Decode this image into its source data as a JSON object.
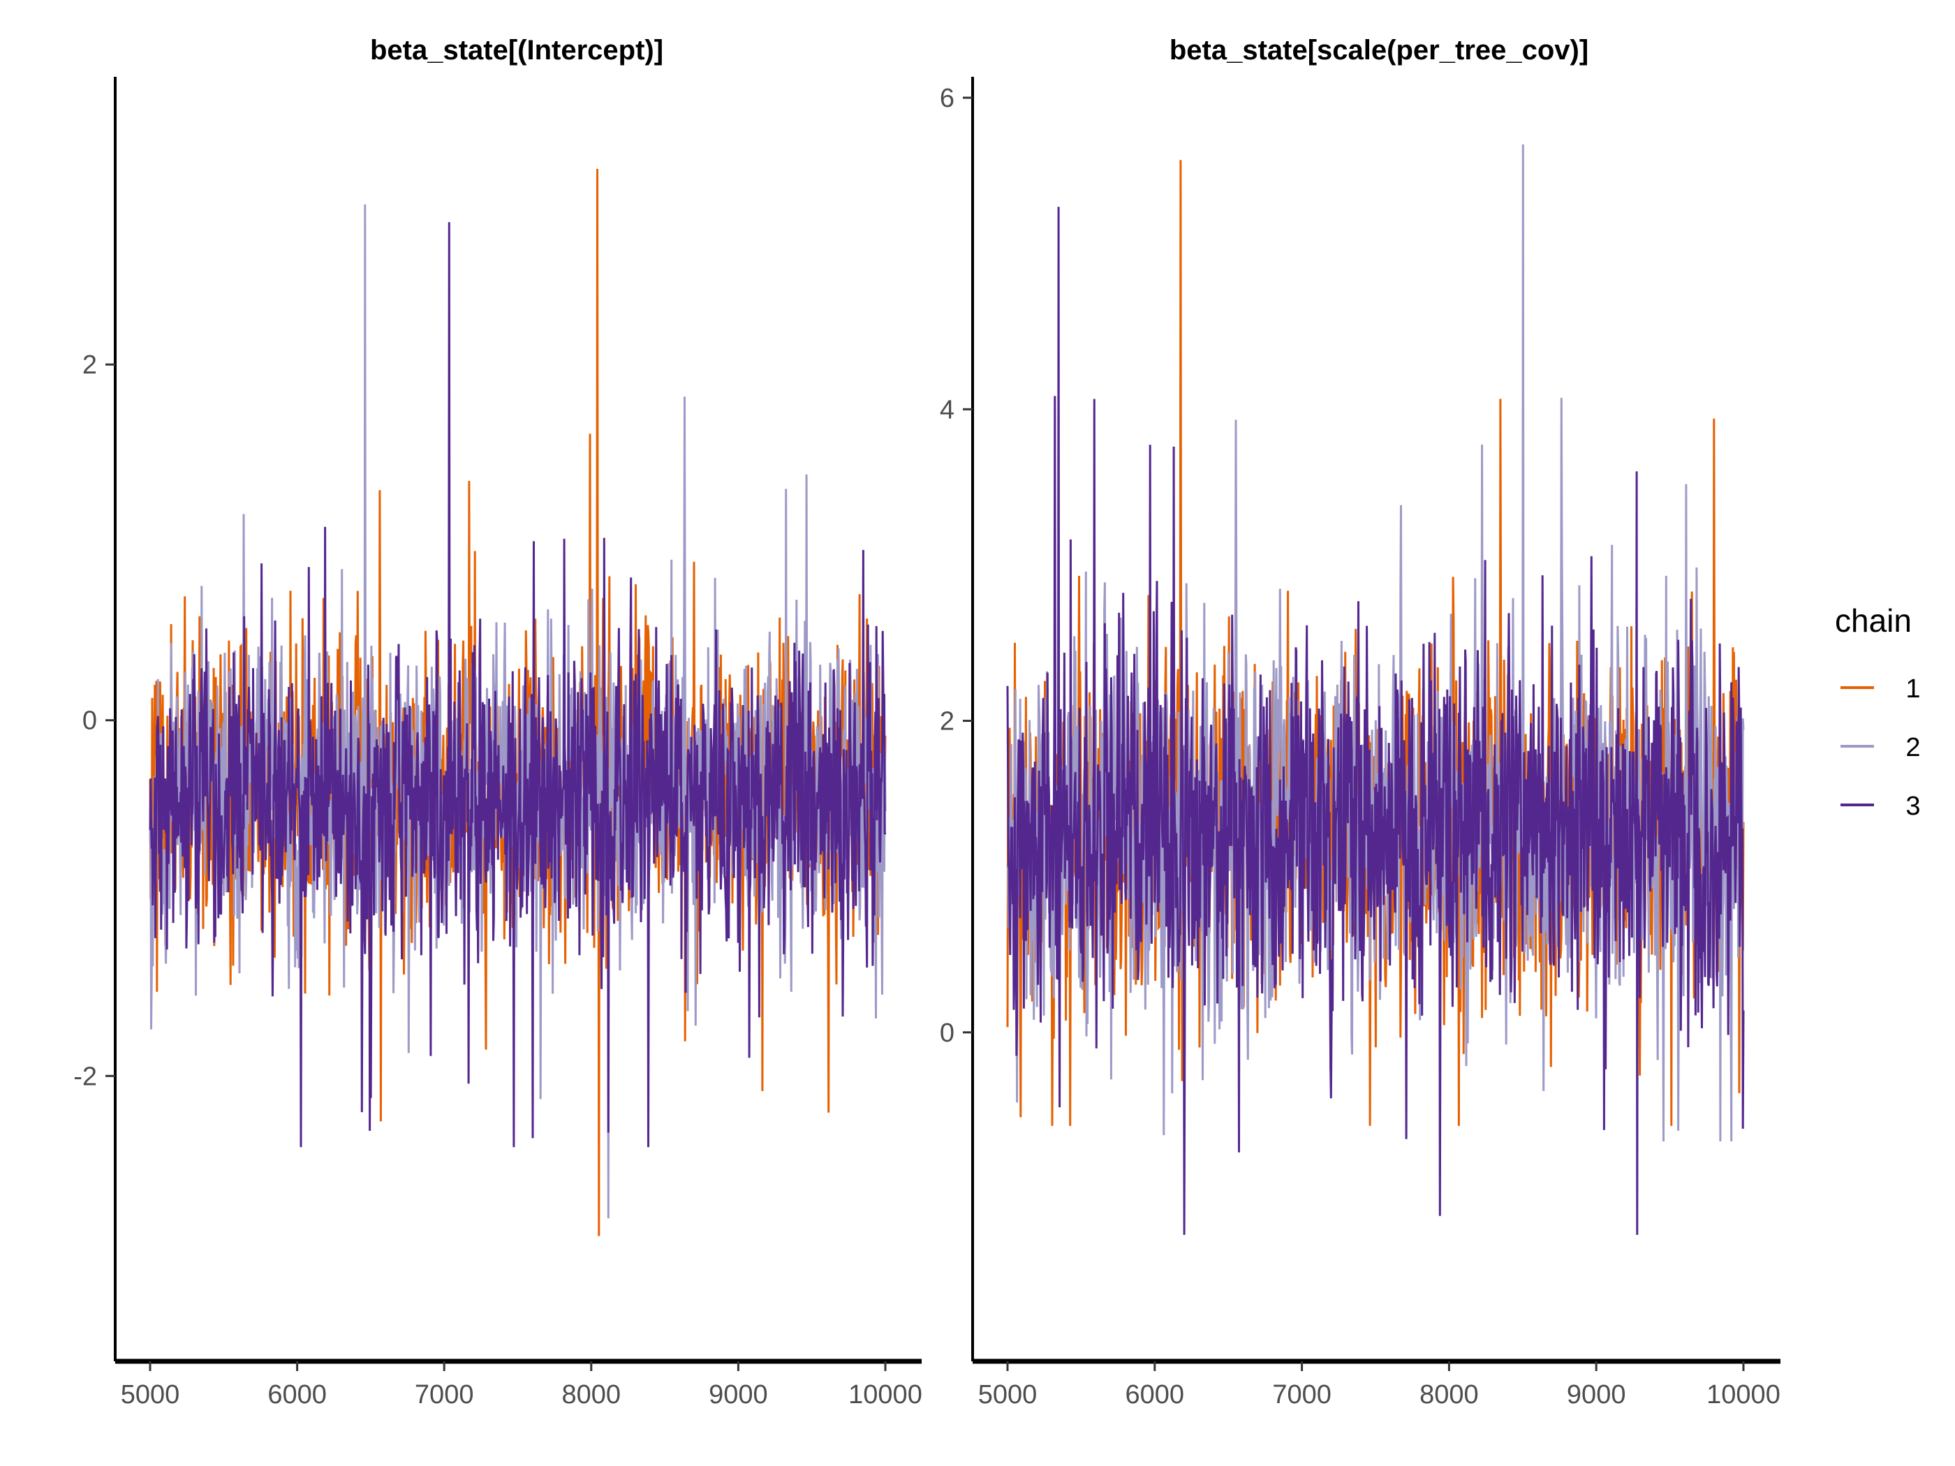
{
  "chart_data": [
    {
      "type": "line",
      "title": "beta_state[(Intercept)]",
      "xlabel": "",
      "ylabel": "",
      "xlim": [
        5000,
        10000
      ],
      "ylim": [
        -3.2,
        3.5
      ],
      "x_ticks": [
        5000,
        6000,
        7000,
        8000,
        9000,
        10000
      ],
      "y_ticks": [
        -2,
        0,
        2
      ],
      "grid": false,
      "series": [
        {
          "name": "1",
          "x_range": [
            5000,
            10000
          ],
          "center": -0.4,
          "sd": 0.45,
          "min": -2.9,
          "max": 3.1
        },
        {
          "name": "2",
          "x_range": [
            5000,
            10000
          ],
          "center": -0.4,
          "sd": 0.45,
          "min": -2.8,
          "max": 2.9
        },
        {
          "name": "3",
          "x_range": [
            5000,
            10000
          ],
          "center": -0.4,
          "sd": 0.45,
          "min": -2.4,
          "max": 2.8
        }
      ]
    },
    {
      "type": "line",
      "title": "beta_state[scale(per_tree_cov)]",
      "xlabel": "",
      "ylabel": "",
      "xlim": [
        5000,
        10000
      ],
      "ylim": [
        -1.65,
        6
      ],
      "x_ticks": [
        5000,
        6000,
        7000,
        8000,
        9000,
        10000
      ],
      "y_ticks": [
        0,
        2,
        4,
        6
      ],
      "grid": false,
      "series": [
        {
          "name": "1",
          "x_range": [
            5000,
            10000
          ],
          "center": 1.3,
          "sd": 0.6,
          "min": -0.6,
          "max": 5.6
        },
        {
          "name": "2",
          "x_range": [
            5000,
            10000
          ],
          "center": 1.3,
          "sd": 0.6,
          "min": -0.7,
          "max": 5.7
        },
        {
          "name": "3",
          "x_range": [
            5000,
            10000
          ],
          "center": 1.3,
          "sd": 0.6,
          "min": -1.3,
          "max": 5.3
        }
      ]
    }
  ],
  "legend": {
    "title": "chain",
    "position": "right",
    "items": [
      {
        "label": "1",
        "color": "#e66101"
      },
      {
        "label": "2",
        "color": "#9e9ac8"
      },
      {
        "label": "3",
        "color": "#54278f"
      }
    ]
  },
  "colors": {
    "chain1": "#e66101",
    "chain2": "#9e9ac8",
    "chain3": "#54278f",
    "axis": "#000000",
    "tick_text": "#4d4d4d"
  }
}
